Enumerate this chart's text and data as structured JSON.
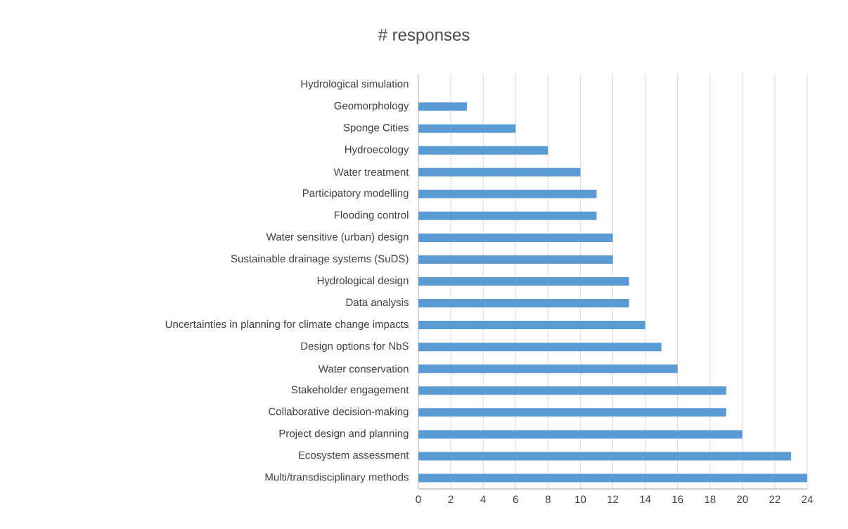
{
  "chart_data": {
    "type": "bar",
    "orientation": "horizontal",
    "title": "# responses",
    "categories": [
      "Hydrological simulation",
      "Geomorphology",
      "Sponge Cities",
      "Hydroecology",
      "Water treatment",
      "Participatory modelling",
      "Flooding control",
      "Water sensitive (urban) design",
      "Sustainable drainage systems (SuDS)",
      "Hydrological design",
      "Data analysis",
      "Uncertainties in planning for climate change impacts",
      "Design options for NbS",
      "Water conservation",
      "Stakeholder engagement",
      "Collaborative decision-making",
      "Project design and planning",
      "Ecosystem assessment",
      "Multi/transdisciplinary methods"
    ],
    "values": [
      0,
      3,
      6,
      8,
      10,
      11,
      11,
      12,
      12,
      13,
      13,
      14,
      15,
      16,
      19,
      19,
      20,
      23,
      24
    ],
    "color": "#5b9bd5",
    "xlim": [
      0,
      24
    ],
    "xticks": [
      0,
      2,
      4,
      6,
      8,
      10,
      12,
      14,
      16,
      18,
      20,
      22,
      24
    ],
    "grid": "x"
  }
}
